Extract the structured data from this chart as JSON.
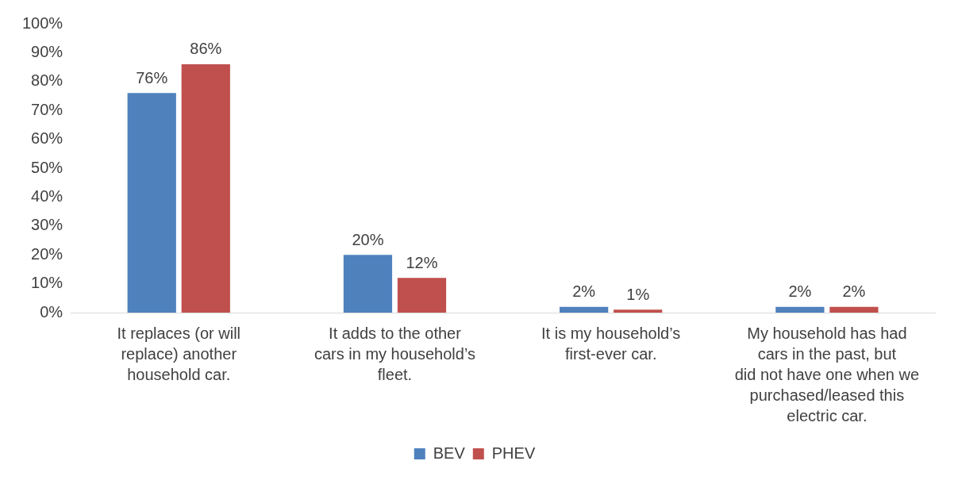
{
  "chart_data": {
    "type": "bar",
    "categories": [
      "It replaces (or will replace) another household car.",
      "It adds to the other cars in my household’s fleet.",
      "It is my household’s first-ever car.",
      "My household has had cars in the past, but did not have one when we purchased/leased this electric car."
    ],
    "series": [
      {
        "name": "BEV",
        "color": "#4f81bd",
        "values": [
          76,
          20,
          2,
          2
        ],
        "value_labels": [
          "76%",
          "20%",
          "2%",
          "2%"
        ]
      },
      {
        "name": "PHEV",
        "color": "#c0504d",
        "values": [
          86,
          12,
          1,
          2
        ],
        "value_labels": [
          "86%",
          "12%",
          "1%",
          "2%"
        ]
      }
    ],
    "ylim": [
      0,
      100
    ],
    "yticks": [
      {
        "value": 0,
        "label": "0%"
      },
      {
        "value": 10,
        "label": "10%"
      },
      {
        "value": 20,
        "label": "20%"
      },
      {
        "value": 30,
        "label": "30%"
      },
      {
        "value": 40,
        "label": "40%"
      },
      {
        "value": 50,
        "label": "50%"
      },
      {
        "value": 60,
        "label": "60%"
      },
      {
        "value": 70,
        "label": "70%"
      },
      {
        "value": 80,
        "label": "80%"
      },
      {
        "value": 90,
        "label": "90%"
      },
      {
        "value": 100,
        "label": "100%"
      }
    ],
    "grid": false,
    "legend": "bottom"
  }
}
